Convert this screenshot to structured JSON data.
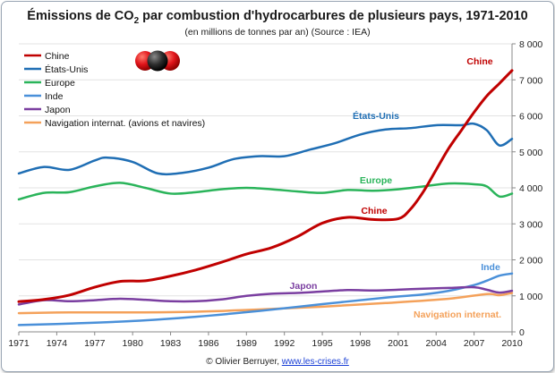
{
  "chart_data": {
    "type": "line",
    "title_main": "Émissions de CO",
    "title_sub": "2",
    "title_rest": " par combustion d'hydrocarbures de plusieurs pays, 1971-2010",
    "subtitle": "(en millions de tonnes par an) (Source : IEA)",
    "x_ticks": [
      "1971",
      "1974",
      "1977",
      "1980",
      "1983",
      "1986",
      "1989",
      "1992",
      "1995",
      "1998",
      "2001",
      "2004",
      "2007",
      "2010"
    ],
    "y_ticks": [
      "0",
      "1 000",
      "2 000",
      "3 000",
      "4 000",
      "5 000",
      "6 000",
      "7 000",
      "8 000"
    ],
    "xlim": [
      1971,
      2010
    ],
    "ylim": [
      0,
      8000
    ],
    "series": [
      {
        "name": "Chine",
        "color": "#c00000",
        "x": [
          1971,
          1973,
          1975,
          1977,
          1979,
          1981,
          1983,
          1985,
          1987,
          1989,
          1991,
          1993,
          1995,
          1997,
          1999,
          2001,
          2002,
          2003,
          2004,
          2005,
          2006,
          2007,
          2008,
          2009,
          2010
        ],
        "values": [
          840,
          900,
          1020,
          1240,
          1400,
          1420,
          1550,
          1720,
          1930,
          2160,
          2340,
          2640,
          3020,
          3180,
          3120,
          3140,
          3420,
          3900,
          4500,
          5100,
          5600,
          6100,
          6550,
          6900,
          7260
        ]
      },
      {
        "name": "États-Unis",
        "color": "#1f6eb4",
        "x": [
          1971,
          1973,
          1975,
          1977,
          1978,
          1980,
          1982,
          1984,
          1986,
          1988,
          1990,
          1992,
          1994,
          1996,
          1998,
          2000,
          2002,
          2004,
          2006,
          2007,
          2008,
          2009,
          2010
        ],
        "values": [
          4400,
          4580,
          4500,
          4760,
          4840,
          4720,
          4400,
          4420,
          4560,
          4800,
          4880,
          4880,
          5060,
          5240,
          5480,
          5620,
          5660,
          5740,
          5740,
          5780,
          5600,
          5180,
          5360
        ]
      },
      {
        "name": "Europe",
        "color": "#2ab45a",
        "x": [
          1971,
          1973,
          1975,
          1977,
          1979,
          1981,
          1983,
          1985,
          1987,
          1989,
          1991,
          1993,
          1995,
          1997,
          1999,
          2001,
          2003,
          2005,
          2007,
          2008,
          2009,
          2010
        ],
        "values": [
          3680,
          3860,
          3880,
          4040,
          4140,
          4000,
          3840,
          3880,
          3960,
          4000,
          3960,
          3900,
          3860,
          3940,
          3920,
          3960,
          4040,
          4120,
          4100,
          4040,
          3760,
          3840
        ]
      },
      {
        "name": "Inde",
        "color": "#4a90d9",
        "x": [
          1971,
          1975,
          1980,
          1985,
          1990,
          1995,
          2000,
          2003,
          2005,
          2007,
          2008,
          2009,
          2010
        ],
        "values": [
          190,
          230,
          300,
          420,
          580,
          770,
          950,
          1040,
          1140,
          1300,
          1420,
          1560,
          1620
        ]
      },
      {
        "name": "Japon",
        "color": "#7a3ea0",
        "x": [
          1971,
          1973,
          1975,
          1977,
          1979,
          1981,
          1983,
          1985,
          1987,
          1989,
          1991,
          1993,
          1995,
          1997,
          1999,
          2001,
          2003,
          2005,
          2007,
          2008,
          2009,
          2010
        ],
        "values": [
          760,
          880,
          850,
          880,
          920,
          890,
          850,
          850,
          900,
          1000,
          1060,
          1080,
          1120,
          1160,
          1150,
          1170,
          1200,
          1220,
          1240,
          1170,
          1090,
          1140
        ]
      },
      {
        "name": "Navigation internat. (avions et navires)",
        "color": "#f4a15a",
        "x": [
          1971,
          1975,
          1980,
          1985,
          1990,
          1995,
          2000,
          2005,
          2008,
          2009,
          2010
        ],
        "values": [
          520,
          540,
          540,
          560,
          620,
          700,
          800,
          920,
          1050,
          1020,
          1080
        ]
      }
    ],
    "annotations": [
      {
        "label": "Chine",
        "color": "#c00000"
      },
      {
        "label": "États-Unis",
        "color": "#1f6eb4"
      },
      {
        "label": "Europe",
        "color": "#2ab45a"
      },
      {
        "label": "Chine",
        "color": "#c00000"
      },
      {
        "label": "Inde",
        "color": "#4a90d9"
      },
      {
        "label": "Japon",
        "color": "#7a3ea0"
      },
      {
        "label": "Navigation internat.",
        "color": "#f4a15a"
      }
    ],
    "legend_placement": "top-left",
    "credit_text": "© Olivier Berruyer, ",
    "credit_link": "www.les-crises.fr"
  }
}
